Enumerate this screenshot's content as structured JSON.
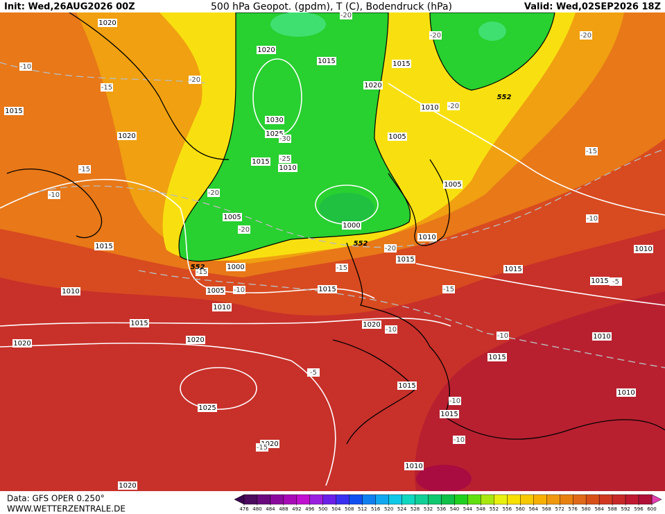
{
  "header": {
    "init": "Init: Wed,26AUG2026 00Z",
    "title": "500 hPa Geopot. (gpdm), T (C), Bodendruck (hPa)",
    "valid": "Valid: Wed,02SEP2026 18Z"
  },
  "footer": {
    "data": "Data: GFS OPER 0.250°",
    "site": "WWW.WETTERZENTRALE.DE"
  },
  "colorbar": {
    "ticks": [
      476,
      480,
      484,
      488,
      492,
      496,
      500,
      504,
      508,
      512,
      516,
      520,
      524,
      528,
      532,
      536,
      540,
      544,
      548,
      552,
      556,
      560,
      564,
      568,
      572,
      576,
      580,
      584,
      588,
      592,
      596,
      600
    ],
    "colors": [
      "#4b0a5e",
      "#6a0a7e",
      "#8a0a9e",
      "#a80ab8",
      "#c010d0",
      "#9a20e0",
      "#6a20e8",
      "#3a30f0",
      "#1050f0",
      "#1080f0",
      "#10a8f0",
      "#10c8e8",
      "#10d8c0",
      "#10d098",
      "#10c870",
      "#10c048",
      "#20d020",
      "#60e010",
      "#a8e810",
      "#e8f010",
      "#f8e000",
      "#f8c800",
      "#f8b000",
      "#f09810",
      "#e88010",
      "#e06818",
      "#d85018",
      "#d03820",
      "#c82828",
      "#c01830",
      "#b01038"
    ]
  },
  "labels": {
    "isobars": [
      "1020",
      "1020",
      "1015",
      "1015",
      "1020",
      "1015",
      "1010",
      "1020",
      "1030",
      "1025",
      "1005",
      "1015",
      "1010",
      "1005",
      "1005",
      "1000",
      "1015",
      "1010",
      "1000",
      "1015",
      "1015",
      "1010",
      "1015",
      "1010",
      "1005",
      "1015",
      "1010",
      "1015",
      "1020",
      "1020",
      "1020",
      "1010",
      "1015",
      "1015",
      "1025",
      "1015",
      "1010",
      "1020",
      "1010",
      "1020"
    ],
    "temperatures": [
      "-20",
      "-20",
      "-20",
      "-10",
      "-15",
      "-20",
      "-20",
      "-30",
      "-25",
      "-15",
      "-20",
      "-10",
      "-15",
      "-10",
      "-20",
      "-20",
      "-15",
      "-15",
      "-10",
      "-15",
      "-10",
      "-10",
      "-5",
      "-10",
      "-10",
      "-5",
      "-15"
    ],
    "heights": [
      "552",
      "552",
      "552"
    ]
  }
}
